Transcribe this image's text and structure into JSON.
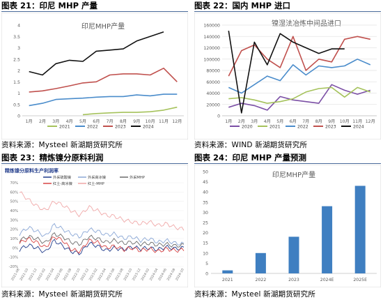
{
  "panels": [
    {
      "id": "p21",
      "header": "图表 21：印尼 MHP 产量",
      "source": "资料来源：Mysteel 新湖期货研究所",
      "chart_data": {
        "type": "line",
        "title": "印尼MHP产量",
        "categories": [
          "1月",
          "2月",
          "3月",
          "4月",
          "5月",
          "6月",
          "7月",
          "8月",
          "9月",
          "10月",
          "11月",
          "12月"
        ],
        "yticks": [
          "0",
          "0.5",
          "1",
          "1.5",
          "2",
          "2.5",
          "3",
          "3.5",
          "4"
        ],
        "ylim": [
          0,
          4
        ],
        "grid": false,
        "legend": "bottom",
        "series": [
          {
            "name": "2021",
            "color": "#a5c25b",
            "values": [
              null,
              null,
              null,
              null,
              0.05,
              0.1,
              0.13,
              0.15,
              0.15,
              0.18,
              0.25,
              0.38
            ]
          },
          {
            "name": "2022",
            "color": "#4a8ccb",
            "values": [
              0.45,
              0.55,
              0.72,
              0.75,
              0.78,
              0.82,
              0.85,
              0.85,
              0.92,
              0.88,
              0.95,
              0.95
            ]
          },
          {
            "name": "2023",
            "color": "#c0504d",
            "values": [
              1.05,
              1.1,
              1.2,
              1.32,
              1.45,
              1.5,
              1.8,
              1.85,
              1.85,
              1.8,
              2.1,
              1.5
            ]
          },
          {
            "name": "2024",
            "color": "#111111",
            "values": [
              1.95,
              1.8,
              2.3,
              2.45,
              2.4,
              2.85,
              2.9,
              2.95,
              3.3,
              3.5,
              3.7,
              null
            ]
          }
        ]
      }
    },
    {
      "id": "p22",
      "header": "图表 22：国内 MHP 进口",
      "source": "资料来源：WIND 新湖期货研究所",
      "chart_data": {
        "type": "line",
        "title": "镍湿法冶炼中间品进口",
        "categories": [
          "1月",
          "2月",
          "3月",
          "4月",
          "5月",
          "6月",
          "7月",
          "8月",
          "9月",
          "10月",
          "11月",
          "12月"
        ],
        "yticks": [
          "0",
          "20000",
          "40000",
          "60000",
          "80000",
          "100000",
          "120000",
          "140000",
          "160000"
        ],
        "ylim": [
          0,
          160000
        ],
        "grid": true,
        "legend": "bottom",
        "series": [
          {
            "name": "2020",
            "color": "#7b4fa5",
            "values": [
              15000,
              22000,
              18000,
              10000,
              34000,
              28000,
              25000,
              22000,
              55000,
              45000,
              38000,
              45000
            ]
          },
          {
            "name": "2021",
            "color": "#a5c25b",
            "values": [
              30000,
              32000,
              28000,
              22000,
              25000,
              30000,
              42000,
              48000,
              50000,
              33000,
              50000,
              42000
            ]
          },
          {
            "name": "2022",
            "color": "#4a8ccb",
            "values": [
              50000,
              40000,
              55000,
              70000,
              62000,
              90000,
              72000,
              88000,
              85000,
              88000,
              100000,
              90000
            ]
          },
          {
            "name": "2023",
            "color": "#c0504d",
            "values": [
              70000,
              115000,
              125000,
              100000,
              85000,
              140000,
              80000,
              100000,
              95000,
              135000,
              140000,
              135000
            ]
          },
          {
            "name": "2024",
            "color": "#111111",
            "values": [
              150000,
              5000,
              130000,
              90000,
              145000,
              130000,
              120000,
              110000,
              118000,
              118000,
              null,
              null
            ]
          }
        ]
      }
    },
    {
      "id": "p23",
      "header": "图表 23：精炼镍分原料利润",
      "source": "资料来源：Mysteel 新湖期货研究所",
      "chart_data": {
        "type": "line",
        "title": "精炼镍分原料生产利润率",
        "yticks": [
          "-20%",
          "-10%",
          "0%",
          "10%",
          "20%",
          "30%",
          "40%",
          "50%",
          "60%",
          "70%"
        ],
        "ylim": [
          -20,
          70
        ],
        "xticks": [
          "2021-08",
          "2021-10",
          "2021-12",
          "2022-02",
          "2022-04",
          "2022-06",
          "2022-08",
          "2022-10",
          "2022-12",
          "2023-02",
          "2023-04",
          "2023-06",
          "2023-08",
          "2023-10",
          "2023-12",
          "2024-02",
          "2024-04",
          "2024-06",
          "2024-08",
          "2024-10"
        ],
        "legend": "top",
        "series": [
          {
            "name": "外采硫酸镍",
            "color": "#1f3a8a",
            "values": [
              -2,
              3,
              0,
              -5,
              8,
              2,
              -4,
              -6,
              5,
              2,
              -3,
              0,
              -2,
              1,
              -1,
              0,
              -2,
              1,
              -1,
              0
            ]
          },
          {
            "name": "外采高冰镍",
            "color": "#8aa7d6",
            "values": [
              15,
              22,
              18,
              12,
              25,
              20,
              15,
              12,
              20,
              18,
              14,
              15,
              10,
              12,
              8,
              10,
              6,
              8,
              5,
              4
            ]
          },
          {
            "name": "外采MHP",
            "color": "#6b6b6b",
            "values": [
              8,
              12,
              10,
              5,
              15,
              12,
              6,
              4,
              12,
              10,
              6,
              8,
              5,
              6,
              4,
              5,
              3,
              4,
              2,
              3
            ]
          },
          {
            "name": "红土-高冰镍",
            "color": "#d84545",
            "values": [
              5,
              10,
              6,
              0,
              12,
              8,
              -2,
              -4,
              8,
              6,
              0,
              2,
              -2,
              0,
              -3,
              -1,
              -4,
              -1,
              -3,
              -2
            ]
          },
          {
            "name": "红土-MHP",
            "color": "#f0a8a8",
            "values": [
              60,
              52,
              45,
              40,
              50,
              46,
              40,
              35,
              44,
              40,
              35,
              34,
              30,
              28,
              26,
              28,
              24,
              26,
              22,
              20
            ]
          }
        ]
      }
    },
    {
      "id": "p24",
      "header": "图表 24：印尼 MHP 产量预测",
      "source": "资料来源：Mysteel 新湖期货研究所",
      "chart_data": {
        "type": "bar",
        "title": "印尼MHP产量",
        "categories": [
          "2021",
          "2022",
          "2023",
          "2024E",
          "2025E"
        ],
        "values": [
          1.5,
          10,
          18,
          33,
          43
        ],
        "yticks": [
          "0",
          "5",
          "10",
          "15",
          "20",
          "25",
          "30",
          "35",
          "40",
          "45",
          "50"
        ],
        "ylim": [
          0,
          50
        ],
        "color": "#3f7fc1"
      }
    }
  ]
}
